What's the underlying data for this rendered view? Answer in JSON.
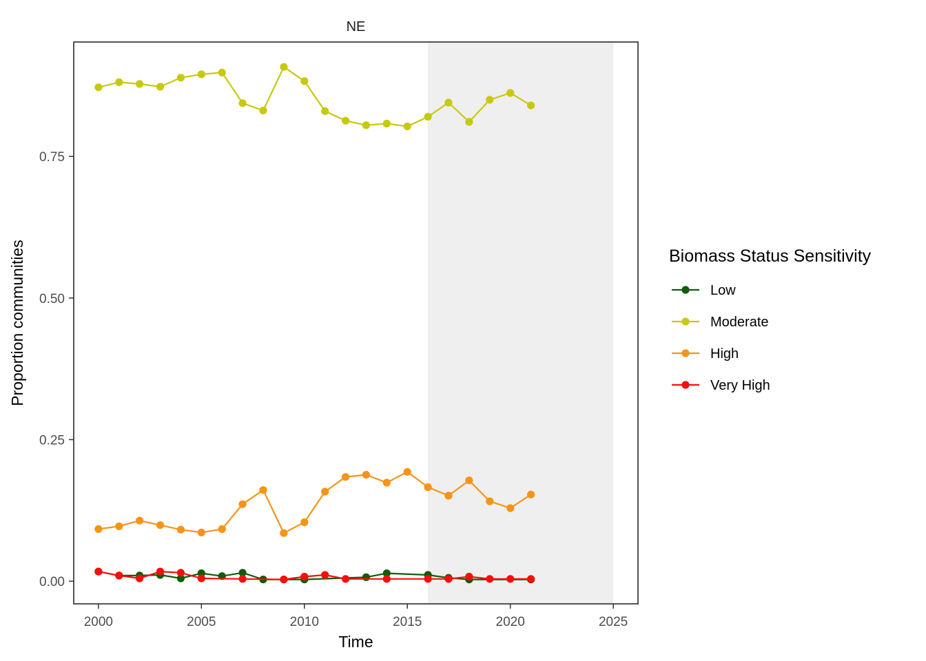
{
  "chart_data": {
    "type": "line",
    "title": "NE",
    "xlabel": "Time",
    "ylabel": "Proportion communities",
    "xlim": [
      1998.8,
      2026.2
    ],
    "ylim": [
      -0.04,
      0.952
    ],
    "x_ticks": [
      2000,
      2005,
      2010,
      2015,
      2020,
      2025
    ],
    "y_ticks": [
      0.0,
      0.25,
      0.5,
      0.75
    ],
    "y_tick_labels": [
      "0.00",
      "0.25",
      "0.50",
      "0.75"
    ],
    "shaded_region": {
      "x_start": 2016,
      "x_end": 2025,
      "color": "#efefef"
    },
    "grid": false,
    "legend": {
      "title": "Biomass Status Sensitivity",
      "position": "right"
    },
    "series": [
      {
        "name": "Low",
        "color": "#0f5c0a",
        "points": [
          [
            2000,
            0.017
          ],
          [
            2001,
            0.01
          ],
          [
            2002,
            0.01
          ],
          [
            2003,
            0.011
          ],
          [
            2004,
            0.005
          ],
          [
            2005,
            0.014
          ],
          [
            2006,
            0.009
          ],
          [
            2007,
            0.015
          ],
          [
            2008,
            0.003
          ],
          [
            2009,
            0.003
          ],
          [
            2010,
            0.003
          ],
          [
            2013,
            0.007
          ],
          [
            2014,
            0.014
          ],
          [
            2016,
            0.011
          ],
          [
            2017,
            0.006
          ],
          [
            2018,
            0.003
          ],
          [
            2021,
            0.003
          ]
        ]
      },
      {
        "name": "Moderate",
        "color": "#c7c90f",
        "points": [
          [
            2000,
            0.872
          ],
          [
            2001,
            0.881
          ],
          [
            2002,
            0.878
          ],
          [
            2003,
            0.873
          ],
          [
            2004,
            0.889
          ],
          [
            2005,
            0.895
          ],
          [
            2006,
            0.898
          ],
          [
            2007,
            0.844
          ],
          [
            2008,
            0.831
          ],
          [
            2009,
            0.908
          ],
          [
            2010,
            0.883
          ],
          [
            2011,
            0.83
          ],
          [
            2012,
            0.813
          ],
          [
            2013,
            0.805
          ],
          [
            2014,
            0.808
          ],
          [
            2015,
            0.803
          ],
          [
            2016,
            0.82
          ],
          [
            2017,
            0.845
          ],
          [
            2018,
            0.811
          ],
          [
            2019,
            0.85
          ],
          [
            2020,
            0.862
          ],
          [
            2021,
            0.84
          ]
        ]
      },
      {
        "name": "High",
        "color": "#f59416",
        "points": [
          [
            2000,
            0.092
          ],
          [
            2001,
            0.097
          ],
          [
            2002,
            0.107
          ],
          [
            2003,
            0.099
          ],
          [
            2004,
            0.091
          ],
          [
            2005,
            0.086
          ],
          [
            2006,
            0.092
          ],
          [
            2007,
            0.136
          ],
          [
            2008,
            0.161
          ],
          [
            2009,
            0.085
          ],
          [
            2010,
            0.104
          ],
          [
            2011,
            0.158
          ],
          [
            2012,
            0.184
          ],
          [
            2013,
            0.188
          ],
          [
            2014,
            0.174
          ],
          [
            2015,
            0.193
          ],
          [
            2016,
            0.166
          ],
          [
            2017,
            0.151
          ],
          [
            2018,
            0.178
          ],
          [
            2019,
            0.141
          ],
          [
            2020,
            0.129
          ],
          [
            2021,
            0.153
          ]
        ]
      },
      {
        "name": "Very High",
        "color": "#f80d0d",
        "points": [
          [
            2000,
            0.017
          ],
          [
            2001,
            0.01
          ],
          [
            2002,
            0.005
          ],
          [
            2003,
            0.017
          ],
          [
            2004,
            0.015
          ],
          [
            2005,
            0.005
          ],
          [
            2007,
            0.004
          ],
          [
            2009,
            0.003
          ],
          [
            2010,
            0.008
          ],
          [
            2011,
            0.011
          ],
          [
            2012,
            0.004
          ],
          [
            2014,
            0.004
          ],
          [
            2016,
            0.004
          ],
          [
            2017,
            0.004
          ],
          [
            2018,
            0.008
          ],
          [
            2019,
            0.004
          ],
          [
            2020,
            0.004
          ],
          [
            2021,
            0.004
          ]
        ]
      }
    ]
  }
}
